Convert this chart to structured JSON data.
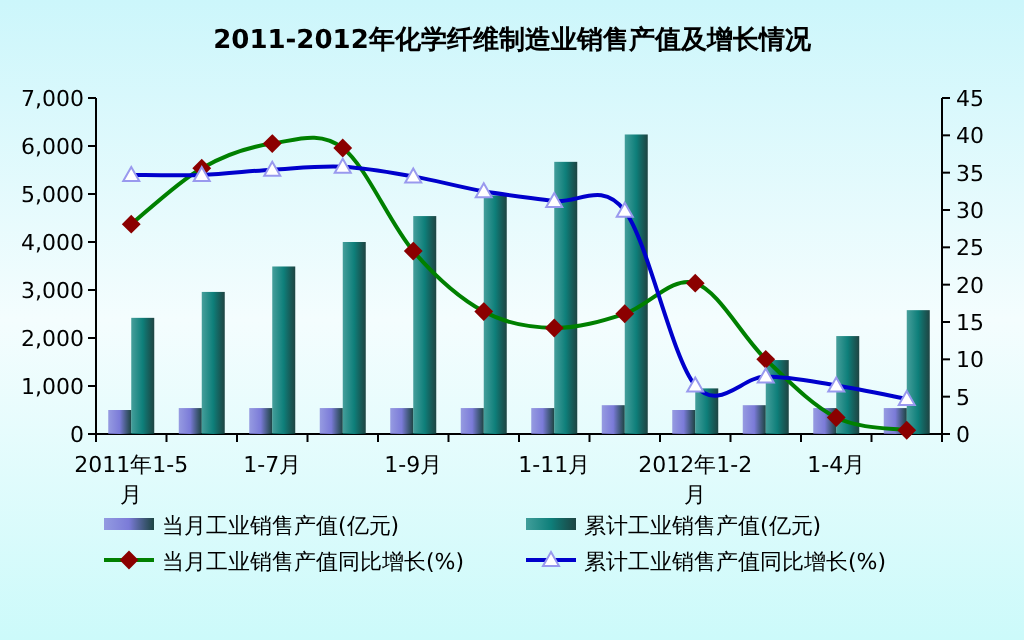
{
  "chart_data": {
    "type": "bar",
    "title": "2011-2012年化学纤维制造业销售产值及增长情况",
    "categories": [
      "2011年1-5月",
      null,
      "1-7月",
      null,
      "1-9月",
      null,
      "1-11月",
      null,
      "2012年1-2月",
      null,
      "1-4月",
      null
    ],
    "ylim": [
      0,
      7000
    ],
    "yticks": [
      0,
      {
        "value": 1000,
        "label": "1,000"
      },
      {
        "value": 2000,
        "label": "2,000"
      },
      {
        "value": 3000,
        "label": "3,000"
      },
      {
        "value": 4000,
        "label": "4,000"
      },
      {
        "value": 5000,
        "label": "5,000"
      },
      {
        "value": 6000,
        "label": "6,000"
      },
      {
        "value": 7000,
        "label": "7,000"
      }
    ],
    "y2lim": [
      0,
      45
    ],
    "y2ticks": [
      0,
      5,
      10,
      15,
      20,
      25,
      30,
      35,
      40,
      45
    ],
    "grid": false,
    "legend": "bottom",
    "series": [
      {
        "name": "当月工业销售产值(亿元)",
        "color": "#7b7bd8",
        "values": [
          500,
          540,
          540,
          540,
          540,
          540,
          540,
          600,
          500,
          600,
          540,
          540
        ]
      },
      {
        "name": "累计工业销售产值(亿元)",
        "color": "#0e7f7a",
        "values": [
          2420,
          2960,
          3490,
          4000,
          4540,
          4970,
          5670,
          6240,
          950,
          1540,
          2040,
          2580
        ]
      },
      {
        "name": "当月工业销售产值同比增长(%)",
        "type": "line",
        "axis": "y2",
        "color": "#008000",
        "marker": "diamond",
        "values": [
          28.1,
          35.6,
          38.9,
          38.3,
          24.5,
          16.4,
          14.2,
          16.1,
          20.2,
          10.0,
          2.2,
          0.5
        ]
      },
      {
        "name": "累计工业销售产值同比增长(%)",
        "type": "line",
        "axis": "y2",
        "color": "#0000cc",
        "marker": "triangle",
        "values": [
          34.7,
          34.7,
          35.4,
          35.8,
          34.5,
          32.5,
          31.2,
          29.9,
          6.5,
          7.7,
          6.5,
          4.7
        ]
      }
    ]
  }
}
